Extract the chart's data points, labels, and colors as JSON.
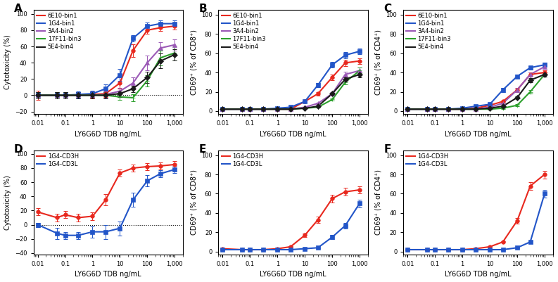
{
  "xlabel": "LY6G6D TDB ng/mL",
  "colors": {
    "6E10": "#e8281e",
    "1G4": "#2255c8",
    "3A4": "#9b59b6",
    "17F11": "#2ca02c",
    "5E4": "#1a1a1a",
    "CD3H": "#e8281e",
    "CD3L": "#2255c8"
  },
  "panel_A": {
    "ylabel": "Cytotoxicity (%)",
    "ylim": [
      -23,
      105
    ],
    "yticks": [
      -20,
      0,
      20,
      40,
      60,
      80,
      100
    ],
    "series": {
      "6E10": {
        "x": [
          0.01,
          0.05,
          0.1,
          0.3,
          1,
          3,
          10,
          30,
          100,
          300,
          1000
        ],
        "y": [
          0,
          0,
          0,
          0,
          1,
          2,
          15,
          55,
          80,
          83,
          85
        ],
        "yerr": [
          6,
          4,
          4,
          4,
          4,
          4,
          7,
          8,
          4,
          4,
          4
        ]
      },
      "1G4": {
        "x": [
          0.01,
          0.05,
          0.1,
          0.3,
          1,
          3,
          10,
          30,
          100,
          300,
          1000
        ],
        "y": [
          0,
          0,
          0,
          1,
          2,
          8,
          25,
          70,
          85,
          88,
          88
        ],
        "yerr": [
          4,
          4,
          4,
          4,
          4,
          5,
          7,
          4,
          4,
          4,
          4
        ]
      },
      "3A4": {
        "x": [
          0.01,
          0.05,
          0.1,
          0.3,
          1,
          3,
          10,
          30,
          100,
          300,
          1000
        ],
        "y": [
          0,
          0,
          0,
          0,
          0,
          1,
          5,
          15,
          40,
          58,
          62
        ],
        "yerr": [
          4,
          4,
          4,
          4,
          4,
          4,
          4,
          7,
          9,
          7,
          7
        ]
      },
      "17F11": {
        "x": [
          0.01,
          0.05,
          0.1,
          0.3,
          1,
          3,
          10,
          30,
          100,
          300,
          1000
        ],
        "y": [
          0,
          0,
          0,
          0,
          0,
          0,
          -2,
          -3,
          18,
          46,
          52
        ],
        "yerr": [
          4,
          4,
          4,
          4,
          4,
          4,
          4,
          4,
          7,
          9,
          9
        ]
      },
      "5E4": {
        "x": [
          0.01,
          0.05,
          0.1,
          0.3,
          1,
          3,
          10,
          30,
          100,
          300,
          1000
        ],
        "y": [
          0,
          0,
          0,
          0,
          0,
          0,
          2,
          8,
          22,
          42,
          50
        ],
        "yerr": [
          4,
          4,
          4,
          4,
          4,
          4,
          4,
          4,
          7,
          9,
          7
        ]
      }
    },
    "legend": [
      "6E10-bin1",
      "1G4-bin1",
      "3A4-bin2",
      "17F11-bin3",
      "5E4-bin4"
    ],
    "dotted_zero": true
  },
  "panel_B": {
    "ylabel": "CD69⁺ (% of CD8⁺)",
    "ylim": [
      -3,
      105
    ],
    "yticks": [
      0,
      20,
      40,
      60,
      80,
      100
    ],
    "series": {
      "6E10": {
        "x": [
          0.01,
          0.05,
          0.1,
          0.3,
          1,
          3,
          10,
          30,
          100,
          300,
          1000
        ],
        "y": [
          2,
          2,
          2,
          2,
          2,
          2,
          10,
          18,
          35,
          50,
          52
        ],
        "yerr": [
          0.5,
          0.5,
          0.5,
          0.5,
          0.5,
          0.5,
          1,
          2,
          3,
          3,
          3
        ]
      },
      "1G4": {
        "x": [
          0.01,
          0.05,
          0.1,
          0.3,
          1,
          3,
          10,
          30,
          100,
          300,
          1000
        ],
        "y": [
          2,
          2,
          2,
          2,
          3,
          4,
          10,
          27,
          48,
          58,
          62
        ],
        "yerr": [
          0.5,
          0.5,
          0.5,
          0.5,
          0.5,
          0.5,
          1,
          2,
          3,
          3,
          3
        ]
      },
      "3A4": {
        "x": [
          0.01,
          0.05,
          0.1,
          0.3,
          1,
          3,
          10,
          30,
          100,
          300,
          1000
        ],
        "y": [
          2,
          2,
          2,
          2,
          2,
          2,
          4,
          8,
          18,
          38,
          42
        ],
        "yerr": [
          0.5,
          0.5,
          0.5,
          0.5,
          0.5,
          0.5,
          0.5,
          1,
          2,
          3,
          3
        ]
      },
      "17F11": {
        "x": [
          0.01,
          0.05,
          0.1,
          0.3,
          1,
          3,
          10,
          30,
          100,
          300,
          1000
        ],
        "y": [
          2,
          2,
          2,
          2,
          2,
          2,
          3,
          4,
          12,
          30,
          42
        ],
        "yerr": [
          0.5,
          0.5,
          0.5,
          0.5,
          0.5,
          0.5,
          0.5,
          0.5,
          1,
          2,
          3
        ]
      },
      "5E4": {
        "x": [
          0.01,
          0.05,
          0.1,
          0.3,
          1,
          3,
          10,
          30,
          100,
          300,
          1000
        ],
        "y": [
          2,
          2,
          2,
          2,
          2,
          2,
          3,
          5,
          18,
          33,
          38
        ],
        "yerr": [
          0.5,
          0.5,
          0.5,
          0.5,
          0.5,
          0.5,
          0.5,
          0.5,
          1,
          2,
          3
        ]
      }
    },
    "legend": [
      "6E10-bin1",
      "1G4-bin1",
      "3A4-bin2",
      "17F11-bin3",
      "5E4-bin4"
    ],
    "dotted_zero": false
  },
  "panel_C": {
    "ylabel": "CD69⁺ (% of CD4⁺)",
    "ylim": [
      -3,
      105
    ],
    "yticks": [
      0,
      20,
      40,
      60,
      80,
      100
    ],
    "series": {
      "6E10": {
        "x": [
          0.01,
          0.05,
          0.1,
          0.3,
          1,
          3,
          10,
          30,
          100,
          300,
          1000
        ],
        "y": [
          2,
          2,
          2,
          2,
          2,
          3,
          6,
          10,
          22,
          38,
          40
        ],
        "yerr": [
          0.5,
          0.5,
          0.5,
          0.5,
          0.5,
          0.5,
          1,
          1,
          2,
          2,
          2
        ]
      },
      "1G4": {
        "x": [
          0.01,
          0.05,
          0.1,
          0.3,
          1,
          3,
          10,
          30,
          100,
          300,
          1000
        ],
        "y": [
          2,
          2,
          2,
          2,
          3,
          5,
          7,
          22,
          36,
          45,
          48
        ],
        "yerr": [
          0.5,
          0.5,
          0.5,
          0.5,
          0.5,
          0.5,
          1,
          2,
          2,
          2,
          2
        ]
      },
      "3A4": {
        "x": [
          0.01,
          0.05,
          0.1,
          0.3,
          1,
          3,
          10,
          30,
          100,
          300,
          1000
        ],
        "y": [
          2,
          2,
          2,
          2,
          2,
          2,
          4,
          8,
          22,
          38,
          46
        ],
        "yerr": [
          0.5,
          0.5,
          0.5,
          0.5,
          0.5,
          0.5,
          1,
          1,
          2,
          2,
          2
        ]
      },
      "17F11": {
        "x": [
          0.01,
          0.05,
          0.1,
          0.3,
          1,
          3,
          10,
          30,
          100,
          300,
          1000
        ],
        "y": [
          2,
          2,
          2,
          2,
          2,
          2,
          2,
          3,
          6,
          20,
          38
        ],
        "yerr": [
          0.5,
          0.5,
          0.5,
          0.5,
          0.5,
          0.5,
          0.5,
          0.5,
          1,
          2,
          2
        ]
      },
      "5E4": {
        "x": [
          0.01,
          0.05,
          0.1,
          0.3,
          1,
          3,
          10,
          30,
          100,
          300,
          1000
        ],
        "y": [
          2,
          2,
          2,
          2,
          2,
          2,
          3,
          5,
          14,
          32,
          38
        ],
        "yerr": [
          0.5,
          0.5,
          0.5,
          0.5,
          0.5,
          0.5,
          0.5,
          0.5,
          1,
          2,
          2
        ]
      }
    },
    "legend": [
      "6E10-bin1",
      "1G4-bin1",
      "3A4-bin2",
      "17F11-bin3",
      "5E4-bin4"
    ],
    "dotted_zero": false
  },
  "panel_D": {
    "ylabel": "Cytotoxicity (%)",
    "ylim": [
      -42,
      105
    ],
    "yticks": [
      -40,
      -20,
      0,
      20,
      40,
      60,
      80,
      100
    ],
    "series": {
      "CD3H": {
        "x": [
          0.01,
          0.05,
          0.1,
          0.3,
          1,
          3,
          10,
          30,
          100,
          300,
          1000
        ],
        "y": [
          18,
          10,
          14,
          10,
          12,
          35,
          73,
          80,
          82,
          83,
          85
        ],
        "yerr": [
          5,
          5,
          5,
          5,
          5,
          8,
          5,
          5,
          5,
          5,
          5
        ]
      },
      "CD3L": {
        "x": [
          0.01,
          0.05,
          0.1,
          0.3,
          1,
          3,
          10,
          30,
          100,
          300,
          1000
        ],
        "y": [
          0,
          -12,
          -15,
          -15,
          -10,
          -10,
          -5,
          35,
          62,
          72,
          78
        ],
        "yerr": [
          3,
          8,
          5,
          5,
          8,
          10,
          10,
          10,
          8,
          5,
          5
        ]
      }
    },
    "legend": [
      "1G4-CD3H",
      "1G4-CD3L"
    ],
    "dotted_zero": true
  },
  "panel_E": {
    "ylabel": "CD69⁺ (% of CD8⁺)",
    "ylim": [
      -3,
      105
    ],
    "yticks": [
      0,
      20,
      40,
      60,
      80,
      100
    ],
    "series": {
      "CD3H": {
        "x": [
          0.01,
          0.05,
          0.1,
          0.3,
          1,
          3,
          10,
          30,
          100,
          300,
          1000
        ],
        "y": [
          3,
          2,
          2,
          2,
          3,
          5,
          17,
          33,
          55,
          62,
          64
        ],
        "yerr": [
          0.5,
          0.5,
          0.5,
          0.5,
          0.5,
          1,
          2,
          3,
          4,
          4,
          4
        ]
      },
      "CD3L": {
        "x": [
          0.01,
          0.05,
          0.1,
          0.3,
          1,
          3,
          10,
          30,
          100,
          300,
          1000
        ],
        "y": [
          2,
          2,
          2,
          2,
          2,
          2,
          3,
          4,
          15,
          27,
          50
        ],
        "yerr": [
          0.5,
          0.5,
          0.5,
          0.5,
          0.5,
          0.5,
          0.5,
          0.5,
          2,
          3,
          4
        ]
      }
    },
    "legend": [
      "1G4-CD3H",
      "1G4-CD3L"
    ],
    "dotted_zero": false
  },
  "panel_F": {
    "ylabel": "CD69⁺ (% of CD4⁺)",
    "ylim": [
      -3,
      105
    ],
    "yticks": [
      0,
      20,
      40,
      60,
      80,
      100
    ],
    "series": {
      "CD3H": {
        "x": [
          0.01,
          0.05,
          0.1,
          0.3,
          1,
          3,
          10,
          30,
          100,
          300,
          1000
        ],
        "y": [
          2,
          2,
          2,
          2,
          2,
          3,
          5,
          10,
          32,
          68,
          80
        ],
        "yerr": [
          0.5,
          0.5,
          0.5,
          0.5,
          0.5,
          0.5,
          1,
          1,
          3,
          4,
          4
        ]
      },
      "CD3L": {
        "x": [
          0.01,
          0.05,
          0.1,
          0.3,
          1,
          3,
          10,
          30,
          100,
          300,
          1000
        ],
        "y": [
          2,
          2,
          2,
          2,
          2,
          2,
          2,
          2,
          4,
          10,
          60
        ],
        "yerr": [
          0.5,
          0.5,
          0.5,
          0.5,
          0.5,
          0.5,
          0.5,
          0.5,
          0.5,
          1,
          4
        ]
      }
    },
    "legend": [
      "1G4-CD3H",
      "1G4-CD3L"
    ],
    "dotted_zero": false
  },
  "background_color": "#ffffff",
  "marker_size": 4,
  "line_width": 1.5,
  "font_size": 7
}
